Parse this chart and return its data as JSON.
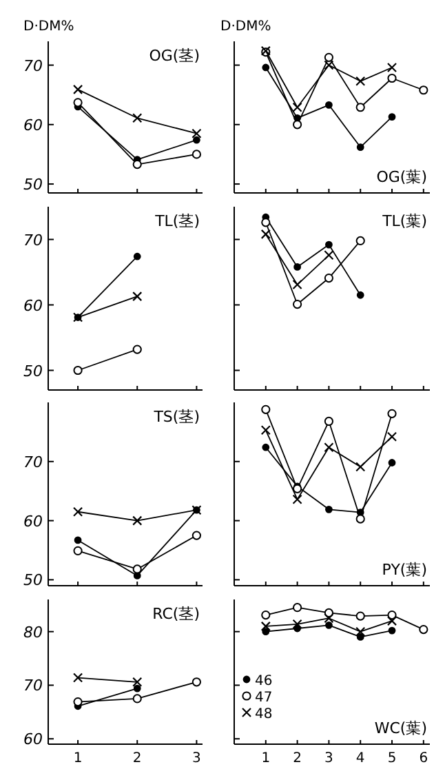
{
  "chart_data": [
    {
      "type": "line",
      "title": "OG(茎)",
      "ylabel": "D·DM%",
      "x": [
        1,
        2,
        3
      ],
      "xlim": [
        0.5,
        3.1
      ],
      "xticks": [
        1,
        2,
        3
      ],
      "ylim": [
        48.5,
        74
      ],
      "yticks": [
        50,
        60,
        70
      ],
      "tick_labels": "y",
      "grid": false,
      "legend": false,
      "line_style": "solid",
      "series": [
        {
          "color": "#000000",
          "marker": "circle",
          "values": [
            63,
            54.1,
            57.4
          ]
        },
        {
          "color": "#000000",
          "marker": "circle",
          "values": [
            63.7,
            53.3,
            55
          ]
        },
        {
          "color": "#000000",
          "marker": "cross",
          "values": [
            65.9,
            61.1,
            58.5
          ]
        }
      ]
    },
    {
      "type": "line",
      "title": "OG(葉)",
      "ylabel": "D·DM%",
      "x": [
        1,
        2,
        3,
        4,
        5,
        6
      ],
      "xlim": [
        0,
        6.2
      ],
      "xticks": [
        1,
        2,
        3,
        4,
        5,
        6
      ],
      "ylim": [
        48.5,
        74
      ],
      "yticks": [
        50,
        60,
        70
      ],
      "tick_labels": false,
      "grid": false,
      "legend": false,
      "line_style": "solid",
      "series": [
        {
          "color": "#000000",
          "marker": "circle",
          "values": [
            69.6,
            61.1,
            63.3,
            56.2,
            61.3,
            null
          ]
        },
        {
          "color": "#000000",
          "marker": "circle",
          "values": [
            72.2,
            60,
            71.3,
            62.9,
            67.8,
            65.8
          ]
        },
        {
          "color": "#000000",
          "marker": "cross",
          "values": [
            72.4,
            62.9,
            70,
            67.3,
            69.6,
            null
          ]
        }
      ]
    },
    {
      "type": "line",
      "title": "TL(茎)",
      "x": [
        1,
        2
      ],
      "xlim": [
        0.5,
        3.1
      ],
      "xticks": [
        1,
        2,
        3
      ],
      "ylim": [
        47,
        75
      ],
      "yticks": [
        50,
        60,
        70
      ],
      "tick_labels": "y",
      "grid": false,
      "legend": false,
      "line_style": "solid",
      "series": [
        {
          "color": "#000000",
          "marker": "circle",
          "values": [
            58.1,
            67.4
          ]
        },
        {
          "color": "#000000",
          "marker": "circle",
          "values": [
            50,
            53.2
          ]
        },
        {
          "color": "#000000",
          "marker": "cross",
          "values": [
            58.1,
            61.3
          ]
        }
      ]
    },
    {
      "type": "line",
      "title": "TL(葉)",
      "x": [
        1,
        2,
        3,
        4
      ],
      "xlim": [
        0,
        6.2
      ],
      "xticks": [
        1,
        2,
        3,
        4,
        5,
        6
      ],
      "ylim": [
        47,
        75
      ],
      "yticks": [
        50,
        60,
        70
      ],
      "tick_labels": false,
      "grid": false,
      "legend": false,
      "line_style": "solid",
      "series": [
        {
          "color": "#000000",
          "marker": "circle",
          "values": [
            73.4,
            65.8,
            69.2,
            61.5
          ]
        },
        {
          "color": "#000000",
          "marker": "circle",
          "values": [
            72.6,
            60.1,
            64.1,
            69.8
          ]
        },
        {
          "color": "#000000",
          "marker": "cross",
          "values": [
            70.8,
            63.1,
            67.6,
            null
          ]
        }
      ]
    },
    {
      "type": "line",
      "title": "TS(茎)",
      "x": [
        1,
        2,
        3
      ],
      "xlim": [
        0.5,
        3.1
      ],
      "xticks": [
        1,
        2,
        3
      ],
      "ylim": [
        49,
        80
      ],
      "yticks": [
        50,
        60,
        70
      ],
      "tick_labels": "y",
      "grid": false,
      "legend": false,
      "line_style": "solid",
      "series": [
        {
          "color": "#000000",
          "marker": "circle",
          "values": [
            56.7,
            50.7,
            61.8
          ]
        },
        {
          "color": "#000000",
          "marker": "circle",
          "values": [
            54.9,
            51.8,
            57.5
          ]
        },
        {
          "color": "#000000",
          "marker": "cross",
          "values": [
            61.5,
            60,
            61.8
          ]
        }
      ]
    },
    {
      "type": "line",
      "title": "PY(葉)",
      "x": [
        1,
        2,
        3,
        4,
        5
      ],
      "xlim": [
        0,
        6.2
      ],
      "xticks": [
        1,
        2,
        3,
        4,
        5,
        6
      ],
      "ylim": [
        49,
        80
      ],
      "yticks": [
        50,
        60,
        70
      ],
      "tick_labels": false,
      "grid": false,
      "legend": false,
      "line_style": "solid",
      "series": [
        {
          "color": "#000000",
          "marker": "circle",
          "values": [
            72.4,
            65.8,
            61.9,
            61.4,
            69.8
          ]
        },
        {
          "color": "#000000",
          "marker": "circle",
          "values": [
            78.8,
            65.4,
            76.8,
            60.3,
            78.1
          ]
        },
        {
          "color": "#000000",
          "marker": "cross",
          "values": [
            75.3,
            63.6,
            72.4,
            69.1,
            74.2
          ]
        }
      ]
    },
    {
      "type": "line",
      "title": "RC(茎)",
      "x": [
        1,
        2,
        3
      ],
      "xlim": [
        0.5,
        3.1
      ],
      "xticks": [
        1,
        2,
        3
      ],
      "ylim": [
        59,
        86
      ],
      "yticks": [
        60,
        70,
        80
      ],
      "grid": false,
      "legend": false,
      "line_style": "solid",
      "series": [
        {
          "color": "#000000",
          "marker": "circle",
          "values": [
            66.1,
            69.4,
            null
          ]
        },
        {
          "color": "#000000",
          "marker": "circle",
          "values": [
            66.9,
            67.5,
            70.6
          ]
        },
        {
          "color": "#000000",
          "marker": "cross",
          "values": [
            71.4,
            70.6,
            null
          ]
        }
      ]
    },
    {
      "type": "line",
      "title": "WC(葉)",
      "x": [
        1,
        2,
        3,
        4,
        5,
        6
      ],
      "xlim": [
        0,
        6.2
      ],
      "xticks": [
        1,
        2,
        3,
        4,
        5,
        6
      ],
      "ylim": [
        59,
        86
      ],
      "yticks": [
        60,
        70,
        80
      ],
      "tick_labels": "x",
      "grid": false,
      "legend": "bottom left",
      "line_style": "solid",
      "series": [
        {
          "name": "46",
          "color": "#000000",
          "marker": "circle",
          "values": [
            80,
            80.6,
            81.2,
            79,
            80.2,
            null
          ]
        },
        {
          "name": "47",
          "color": "#000000",
          "marker": "circle",
          "values": [
            83.1,
            84.5,
            83.5,
            82.9,
            83.1,
            80.4
          ]
        },
        {
          "name": "48",
          "color": "#000000",
          "marker": "cross",
          "values": [
            81,
            81.4,
            82.5,
            80,
            82,
            null
          ]
        }
      ]
    }
  ]
}
